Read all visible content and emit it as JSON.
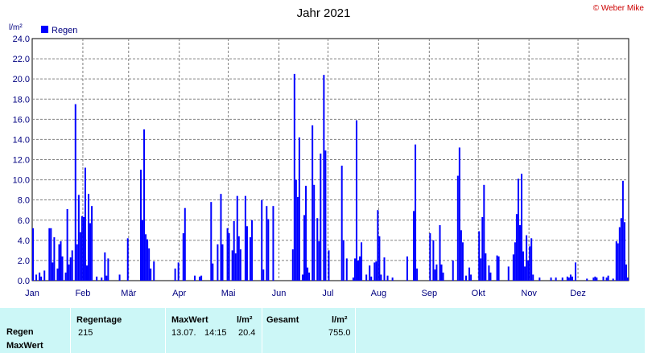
{
  "header": {
    "title": "Jahr 2021",
    "copyright": "© Weber Mike",
    "unit": "l/m²"
  },
  "legend": {
    "label": "Regen",
    "color": "#0000ff"
  },
  "colors": {
    "bars": "#0000ff",
    "grid": "#808080",
    "axis_text": "#000080",
    "panel_bg": "#ccf7f7"
  },
  "chart_data": {
    "type": "bar",
    "title": "Jahr 2021",
    "ylabel": "l/m²",
    "ylim": [
      0,
      24
    ],
    "yticks": [
      "0.0",
      "2.0",
      "4.0",
      "6.0",
      "8.0",
      "10.0",
      "12.0",
      "14.0",
      "16.0",
      "18.0",
      "20.0",
      "22.0",
      "24.0"
    ],
    "x_range_days": [
      1,
      365
    ],
    "month_labels": [
      "Jan",
      "Feb",
      "Mär",
      "Apr",
      "Mai",
      "Jun",
      "Jul",
      "Aug",
      "Sep",
      "Okt",
      "Nov",
      "Dez"
    ],
    "grid": true,
    "legend_position": "top-left",
    "series": [
      {
        "name": "Regen",
        "x_unit": "day of year",
        "points": [
          [
            1,
            5.2
          ],
          [
            3,
            0.6
          ],
          [
            5,
            0.8
          ],
          [
            6,
            0.4
          ],
          [
            8,
            1.0
          ],
          [
            11,
            5.2
          ],
          [
            12,
            5.2
          ],
          [
            13,
            1.8
          ],
          [
            14,
            4.3
          ],
          [
            16,
            1.2
          ],
          [
            17,
            3.6
          ],
          [
            18,
            3.9
          ],
          [
            19,
            2.4
          ],
          [
            21,
            0.8
          ],
          [
            22,
            7.1
          ],
          [
            23,
            1.6
          ],
          [
            24,
            2.3
          ],
          [
            25,
            3.0
          ],
          [
            27,
            17.5
          ],
          [
            28,
            3.6
          ],
          [
            29,
            8.5
          ],
          [
            30,
            4.8
          ],
          [
            31,
            6.4
          ],
          [
            32,
            6.3
          ],
          [
            33,
            11.2
          ],
          [
            34,
            1.5
          ],
          [
            35,
            8.6
          ],
          [
            36,
            5.7
          ],
          [
            37,
            7.4
          ],
          [
            40,
            0.4
          ],
          [
            43,
            0.3
          ],
          [
            45,
            2.8
          ],
          [
            46,
            0.5
          ],
          [
            47,
            2.2
          ],
          [
            54,
            0.6
          ],
          [
            59,
            4.2
          ],
          [
            67,
            11.0
          ],
          [
            68,
            6.0
          ],
          [
            69,
            15.0
          ],
          [
            70,
            4.6
          ],
          [
            71,
            4.1
          ],
          [
            72,
            3.2
          ],
          [
            73,
            1.2
          ],
          [
            75,
            1.9
          ],
          [
            88,
            1.2
          ],
          [
            90,
            1.8
          ],
          [
            93,
            4.7
          ],
          [
            94,
            7.2
          ],
          [
            100,
            0.5
          ],
          [
            103,
            0.4
          ],
          [
            104,
            0.5
          ],
          [
            110,
            7.8
          ],
          [
            111,
            1.7
          ],
          [
            114,
            3.6
          ],
          [
            116,
            8.6
          ],
          [
            117,
            3.6
          ],
          [
            120,
            5.2
          ],
          [
            121,
            4.7
          ],
          [
            123,
            3.0
          ],
          [
            124,
            5.9
          ],
          [
            125,
            2.7
          ],
          [
            126,
            8.4
          ],
          [
            127,
            4.4
          ],
          [
            128,
            3.1
          ],
          [
            131,
            8.4
          ],
          [
            132,
            5.4
          ],
          [
            134,
            4.3
          ],
          [
            135,
            6.0
          ],
          [
            141,
            8.0
          ],
          [
            142,
            1.1
          ],
          [
            144,
            7.4
          ],
          [
            145,
            6.1
          ],
          [
            148,
            7.4
          ],
          [
            160,
            3.1
          ],
          [
            161,
            20.5
          ],
          [
            162,
            10.0
          ],
          [
            163,
            8.3
          ],
          [
            164,
            14.2
          ],
          [
            166,
            0.6
          ],
          [
            167,
            6.5
          ],
          [
            168,
            9.4
          ],
          [
            169,
            1.3
          ],
          [
            170,
            0.8
          ],
          [
            172,
            15.4
          ],
          [
            173,
            9.5
          ],
          [
            175,
            6.2
          ],
          [
            176,
            3.9
          ],
          [
            177,
            12.6
          ],
          [
            179,
            20.4
          ],
          [
            180,
            12.9
          ],
          [
            182,
            3.0
          ],
          [
            190,
            11.4
          ],
          [
            191,
            4.0
          ],
          [
            193,
            2.2
          ],
          [
            197,
            0.3
          ],
          [
            198,
            2.2
          ],
          [
            199,
            15.9
          ],
          [
            200,
            2.0
          ],
          [
            201,
            2.4
          ],
          [
            202,
            3.8
          ],
          [
            205,
            0.6
          ],
          [
            207,
            1.5
          ],
          [
            208,
            0.4
          ],
          [
            210,
            1.8
          ],
          [
            211,
            1.9
          ],
          [
            212,
            7.0
          ],
          [
            213,
            4.4
          ],
          [
            214,
            0.6
          ],
          [
            216,
            2.3
          ],
          [
            218,
            0.5
          ],
          [
            221,
            0.3
          ],
          [
            230,
            2.4
          ],
          [
            234,
            6.9
          ],
          [
            235,
            13.5
          ],
          [
            236,
            1.2
          ],
          [
            244,
            4.7
          ],
          [
            246,
            4.0
          ],
          [
            247,
            1.1
          ],
          [
            248,
            1.6
          ],
          [
            250,
            5.5
          ],
          [
            251,
            1.6
          ],
          [
            252,
            0.8
          ],
          [
            258,
            2.0
          ],
          [
            261,
            10.4
          ],
          [
            262,
            13.2
          ],
          [
            263,
            5.0
          ],
          [
            264,
            3.8
          ],
          [
            266,
            0.5
          ],
          [
            268,
            1.3
          ],
          [
            269,
            0.6
          ],
          [
            274,
            4.9
          ],
          [
            275,
            2.2
          ],
          [
            276,
            6.3
          ],
          [
            277,
            9.5
          ],
          [
            278,
            2.7
          ],
          [
            280,
            1.5
          ],
          [
            281,
            0.8
          ],
          [
            285,
            2.5
          ],
          [
            286,
            2.4
          ],
          [
            292,
            1.4
          ],
          [
            295,
            2.6
          ],
          [
            296,
            3.8
          ],
          [
            297,
            6.6
          ],
          [
            298,
            10.1
          ],
          [
            299,
            5.5
          ],
          [
            300,
            10.6
          ],
          [
            301,
            2.9
          ],
          [
            302,
            1.4
          ],
          [
            303,
            4.5
          ],
          [
            304,
            2.0
          ],
          [
            305,
            3.4
          ],
          [
            306,
            4.2
          ],
          [
            307,
            0.6
          ],
          [
            311,
            0.3
          ],
          [
            318,
            0.3
          ],
          [
            321,
            0.3
          ],
          [
            325,
            0.3
          ],
          [
            328,
            0.4
          ],
          [
            329,
            0.3
          ],
          [
            330,
            0.6
          ],
          [
            331,
            0.4
          ],
          [
            333,
            1.8
          ],
          [
            340,
            0.2
          ],
          [
            344,
            0.3
          ],
          [
            345,
            0.4
          ],
          [
            346,
            0.3
          ],
          [
            350,
            0.4
          ],
          [
            352,
            0.3
          ],
          [
            353,
            0.5
          ],
          [
            356,
            0.2
          ],
          [
            358,
            3.9
          ],
          [
            359,
            3.7
          ],
          [
            360,
            5.3
          ],
          [
            361,
            6.2
          ],
          [
            362,
            9.9
          ],
          [
            363,
            5.8
          ],
          [
            364,
            1.6
          ],
          [
            365,
            0.3
          ]
        ]
      }
    ]
  },
  "stats": {
    "row_labels": [
      "Regen",
      "MaxWert"
    ],
    "regentage": {
      "header": "Regentage",
      "value": "215"
    },
    "maxwert": {
      "header": "MaxWert",
      "unit": "l/m²",
      "date": "13.07.",
      "time": "14:15",
      "value": "20.4"
    },
    "gesamt": {
      "header": "Gesamt",
      "unit": "l/m²",
      "value": "755.0"
    }
  }
}
